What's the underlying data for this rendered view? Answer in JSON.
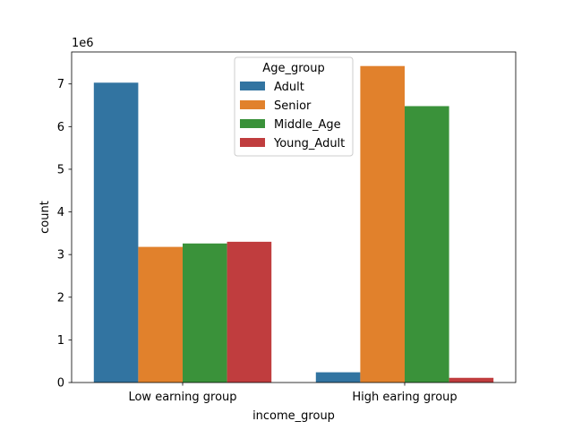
{
  "chart_data": {
    "type": "bar",
    "xlabel": "income_group",
    "ylabel": "count",
    "y_offset_label": "1e6",
    "y_scale": 1000000,
    "ylim": [
      0,
      7.75
    ],
    "y_ticks": [
      0,
      1,
      2,
      3,
      4,
      5,
      6,
      7
    ],
    "y_tick_labels": [
      "0",
      "1",
      "2",
      "3",
      "4",
      "5",
      "6",
      "7"
    ],
    "categories": [
      "Low earning group",
      "High earing group"
    ],
    "legend": {
      "title": "Age_group",
      "placement": "upper center"
    },
    "series": [
      {
        "name": "Adult",
        "color": "#3274a1",
        "values": [
          7.03,
          0.24
        ]
      },
      {
        "name": "Senior",
        "color": "#e1812c",
        "values": [
          3.18,
          7.42
        ]
      },
      {
        "name": "Middle_Age",
        "color": "#3a923a",
        "values": [
          3.26,
          6.48
        ]
      },
      {
        "name": "Young_Adult",
        "color": "#c03d3e",
        "values": [
          3.3,
          0.11
        ]
      }
    ]
  }
}
